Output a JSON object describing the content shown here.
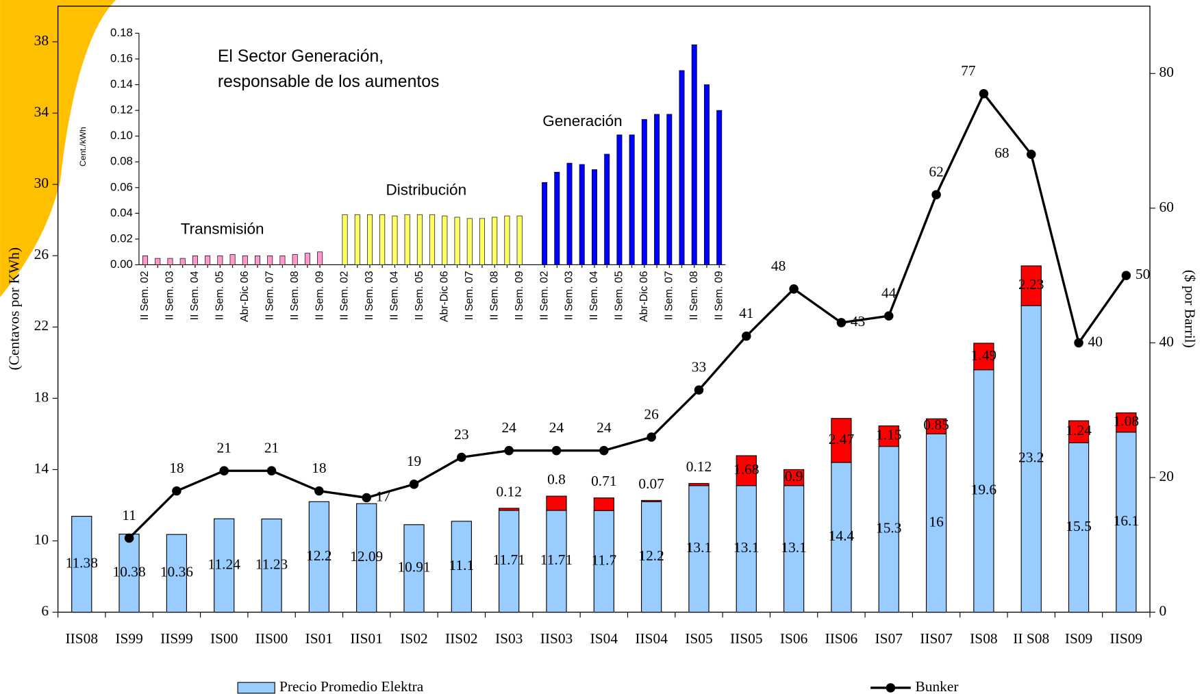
{
  "chart_data": [
    {
      "type": "bar",
      "categories": [
        "IIS08",
        "IS99",
        "IIS99",
        "IS00",
        "IIS00",
        "IS01",
        "IIS01",
        "IS02",
        "IIS02",
        "IS03",
        "IIS03",
        "IS04",
        "IIS04",
        "IS05",
        "IIS05",
        "IS06",
        "IIS06",
        "IS07",
        "IIS07",
        "IS08",
        "II S08",
        "IS09",
        "IIS09"
      ],
      "y_label": "(Centavos por KWh)",
      "y2_label": "($ por Barril)",
      "ylim": [
        6,
        40
      ],
      "yticks": [
        6,
        10,
        14,
        18,
        22,
        26,
        30,
        34,
        38
      ],
      "y2lim": [
        0,
        90
      ],
      "y2ticks": [
        0,
        20,
        40,
        60,
        80
      ],
      "series": [
        {
          "name": "Precio Promedio Elektra",
          "color": "#99ccff",
          "values": [
            11.38,
            10.38,
            10.36,
            11.24,
            11.23,
            12.2,
            12.09,
            10.91,
            11.1,
            11.71,
            11.71,
            11.7,
            12.2,
            13.1,
            13.1,
            13.1,
            14.4,
            15.3,
            16,
            19.6,
            23.2,
            15.5,
            16.1
          ]
        },
        {
          "color": "#ff0000",
          "stacked": true,
          "values": [
            null,
            null,
            null,
            null,
            null,
            null,
            null,
            null,
            null,
            0.12,
            0.8,
            0.71,
            0.07,
            0.12,
            1.68,
            0.9,
            2.47,
            1.15,
            0.85,
            1.49,
            2.23,
            1.24,
            1.08
          ]
        },
        {
          "name": "Bunker",
          "color": "#000000",
          "type": "line",
          "axis": "y2",
          "values": [
            null,
            11,
            18,
            21,
            21,
            18,
            17,
            19,
            23,
            24,
            24,
            24,
            26,
            33,
            41,
            48,
            43,
            44,
            62,
            77,
            68,
            40,
            50
          ]
        }
      ]
    },
    {
      "type": "bar",
      "title": [
        "El Sector Generación,",
        "responsable de los aumentos"
      ],
      "y_label": "Cent./kWh",
      "ylim": [
        0,
        0.18
      ],
      "yticks": [
        {
          "value": 0,
          "label": "0.00"
        },
        {
          "value": 0.02,
          "label": "0.02"
        },
        {
          "value": 0.04,
          "label": "0.04"
        },
        {
          "value": 0.06,
          "label": "0.06"
        },
        {
          "value": 0.08,
          "label": "0.08"
        },
        {
          "value": 0.1,
          "label": "0.10"
        },
        {
          "value": 0.12,
          "label": "0.12"
        },
        {
          "value": 0.14,
          "label": "0.14"
        },
        {
          "value": 0.16,
          "label": "0.16"
        },
        {
          "value": 0.18,
          "label": "0.18"
        }
      ],
      "groups": [
        {
          "name": "Transmisión",
          "color": "#ff99cc",
          "categories": [
            "II Sem. 02",
            null,
            "II Sem. 03",
            null,
            "II Sem. 04",
            null,
            "II Sem. 05",
            null,
            "Abr-Dic 06",
            null,
            "II Sem. 07",
            null,
            "II Sem. 08",
            null,
            "II Sem. 09"
          ],
          "values": [
            0.007,
            0.005,
            0.005,
            0.005,
            0.007,
            0.007,
            0.007,
            0.008,
            0.007,
            0.007,
            0.007,
            0.007,
            0.008,
            0.009,
            0.01
          ]
        },
        {
          "name": "Distribución",
          "color": "#ffff66",
          "categories": [
            "II Sem. 02",
            null,
            "II Sem. 03",
            null,
            "II Sem. 04",
            null,
            "II Sem. 05",
            null,
            "Abr-Dic 06",
            null,
            "II Sem. 07",
            null,
            "II Sem. 08",
            null,
            "II Sem. 09"
          ],
          "values": [
            0.039,
            0.039,
            0.039,
            0.039,
            0.038,
            0.039,
            0.039,
            0.039,
            0.038,
            0.037,
            0.036,
            0.036,
            0.037,
            0.038,
            0.038
          ]
        },
        {
          "name": "Generación",
          "color": "#0000ff",
          "categories": [
            "II Sem. 02",
            null,
            "II Sem. 03",
            null,
            "II Sem. 04",
            null,
            "II Sem. 05",
            null,
            "Abr-Dic 06",
            null,
            "II Sem. 07",
            null,
            "II Sem. 08",
            null,
            "II Sem. 09"
          ],
          "values": [
            0.064,
            0.072,
            0.079,
            0.078,
            0.074,
            0.086,
            0.101,
            0.101,
            0.113,
            0.117,
            0.117,
            0.151,
            0.171,
            0.14,
            0.12
          ]
        }
      ]
    }
  ]
}
